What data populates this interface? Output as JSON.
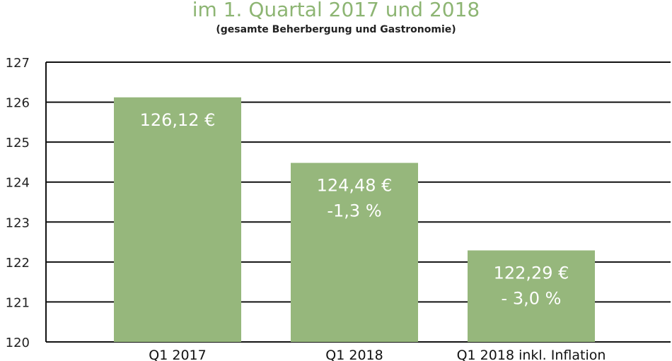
{
  "title": "im 1. Quartal 2017 und 2018",
  "subtitle": "(gesamte Beherbergung und Gastronomie)",
  "colors": {
    "bar": "#96b77c",
    "title": "#8db573",
    "gridline": "#111111",
    "bar_label": "#ffffff"
  },
  "chart_data": {
    "type": "bar",
    "categories": [
      "Q1 2017",
      "Q1 2018",
      "Q1 2018 inkl. Inflation"
    ],
    "values": [
      126.12,
      124.48,
      122.29
    ],
    "bar_labels": [
      [
        "126,12 €"
      ],
      [
        "124,48 €",
        "-1,3 %"
      ],
      [
        "122,29 €",
        "- 3,0 %"
      ]
    ],
    "ylim": [
      120,
      127
    ],
    "yticks": [
      120,
      121,
      122,
      123,
      124,
      125,
      126,
      127
    ],
    "grid": true,
    "legend": "none"
  }
}
